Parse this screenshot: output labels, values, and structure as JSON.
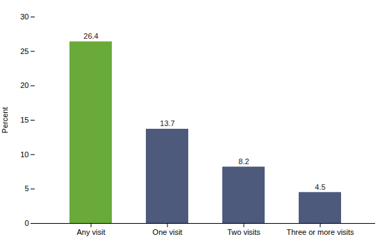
{
  "chart_data": {
    "type": "bar",
    "categories": [
      "Any visit",
      "One visit",
      "Two visits",
      "Three or more visits"
    ],
    "values": [
      26.4,
      13.7,
      8.2,
      4.5
    ],
    "colors": [
      "#6aaa3a",
      "#4d5a7c",
      "#4d5a7c",
      "#4d5a7c"
    ],
    "ylabel": "Percent",
    "ylim": [
      0,
      30
    ],
    "yticks": [
      0,
      5,
      10,
      15,
      20,
      25,
      30
    ],
    "data_labels": true,
    "grid": false
  }
}
